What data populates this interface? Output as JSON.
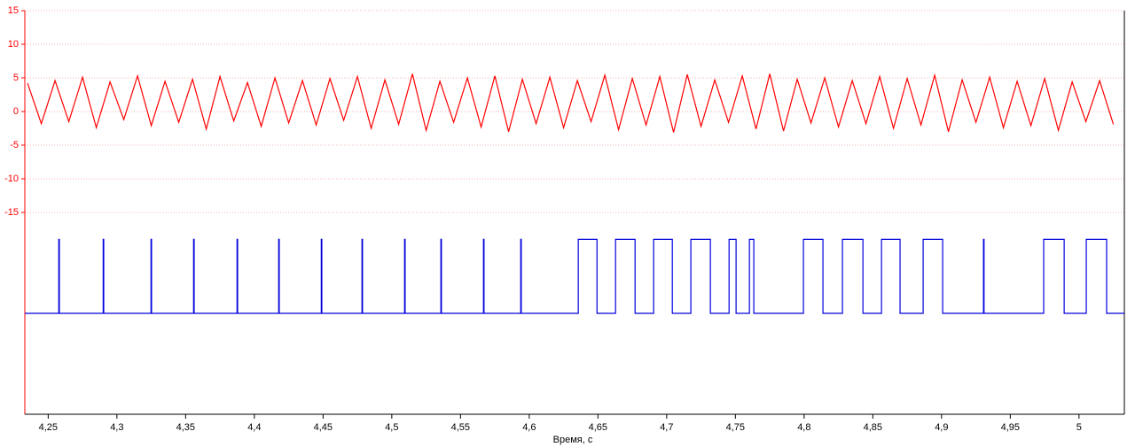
{
  "chart_data": {
    "type": "line",
    "x_label": "Время, с",
    "xlim": [
      4.233,
      5.033
    ],
    "xticks": [
      {
        "value": 4.25,
        "label": "4,25"
      },
      {
        "value": 4.3,
        "label": "4,3"
      },
      {
        "value": 4.35,
        "label": "4,35"
      },
      {
        "value": 4.4,
        "label": "4,4"
      },
      {
        "value": 4.45,
        "label": "4,45"
      },
      {
        "value": 4.5,
        "label": "4,5"
      },
      {
        "value": 4.55,
        "label": "4,55"
      },
      {
        "value": 4.6,
        "label": "4,6"
      },
      {
        "value": 4.65,
        "label": "4,65"
      },
      {
        "value": 4.7,
        "label": "4,7"
      },
      {
        "value": 4.75,
        "label": "4,75"
      },
      {
        "value": 4.8,
        "label": "4,8"
      },
      {
        "value": 4.85,
        "label": "4,85"
      },
      {
        "value": 4.9,
        "label": "4,9"
      },
      {
        "value": 4.95,
        "label": "4,95"
      },
      5
    ],
    "ylim": [
      -45,
      15
    ],
    "yticks": [
      15,
      10,
      5,
      0,
      -5,
      -10,
      -15
    ],
    "grid": true,
    "y_color": "#ff0000",
    "series": [
      {
        "color": "#ff0000",
        "x": [
          4.235,
          4.245,
          4.255,
          4.265,
          4.275,
          4.285,
          4.295,
          4.305,
          4.315,
          4.325,
          4.335,
          4.345,
          4.355,
          4.365,
          4.375,
          4.385,
          4.395,
          4.405,
          4.415,
          4.425,
          4.435,
          4.445,
          4.455,
          4.465,
          4.475,
          4.485,
          4.495,
          4.505,
          4.515,
          4.525,
          4.535,
          4.545,
          4.555,
          4.565,
          4.575,
          4.585,
          4.595,
          4.605,
          4.615,
          4.625,
          4.635,
          4.645,
          4.655,
          4.665,
          4.675,
          4.685,
          4.695,
          4.705,
          4.715,
          4.725,
          4.735,
          4.745,
          4.755,
          4.765,
          4.775,
          4.785,
          4.795,
          4.805,
          4.815,
          4.825,
          4.835,
          4.845,
          4.855,
          4.865,
          4.875,
          4.885,
          4.895,
          4.905,
          4.915,
          4.925,
          4.935,
          4.945,
          4.955,
          4.965,
          4.975,
          4.985,
          4.995,
          5.005,
          5.015,
          5.025
        ],
        "values": [
          4.2,
          -1.8,
          4.6,
          -1.5,
          5.1,
          -2.4,
          4.4,
          -1.2,
          5.3,
          -2.1,
          4.5,
          -1.6,
          4.8,
          -2.6,
          5.2,
          -1.4,
          4.3,
          -2.2,
          5.0,
          -1.7,
          4.6,
          -2.0,
          4.9,
          -1.3,
          5.2,
          -2.5,
          4.7,
          -1.9,
          5.6,
          -2.8,
          4.5,
          -1.6,
          5.0,
          -2.3,
          5.3,
          -3.0,
          4.8,
          -1.8,
          5.1,
          -2.4,
          4.6,
          -1.5,
          5.4,
          -2.7,
          4.9,
          -2.0,
          5.2,
          -3.1,
          5.5,
          -2.2,
          4.7,
          -1.6,
          5.3,
          -2.6,
          5.6,
          -2.9,
          4.8,
          -1.7,
          5.0,
          -2.3,
          4.6,
          -1.8,
          5.2,
          -2.5,
          4.9,
          -2.0,
          5.4,
          -3.0,
          4.7,
          -1.6,
          5.1,
          -2.4,
          4.5,
          -2.1,
          4.9,
          -2.8,
          4.4,
          -1.5,
          4.6,
          -1.9
        ]
      },
      {
        "color": "#0000dd",
        "x": [
          4.233,
          4.2577,
          4.2577,
          4.2581,
          4.2581,
          4.29,
          4.29,
          4.2904,
          4.2904,
          4.3248,
          4.3248,
          4.3252,
          4.3252,
          4.3558,
          4.3558,
          4.3562,
          4.3562,
          4.3874,
          4.3874,
          4.3878,
          4.3878,
          4.4177,
          4.4177,
          4.4181,
          4.4181,
          4.4487,
          4.4487,
          4.4491,
          4.4491,
          4.4783,
          4.4783,
          4.4787,
          4.4787,
          4.5093,
          4.5093,
          4.5097,
          4.5097,
          4.5357,
          4.5357,
          4.5361,
          4.5361,
          4.5667,
          4.5667,
          4.5671,
          4.5671,
          4.5938,
          4.5938,
          4.5942,
          4.5942,
          4.6357,
          4.6357,
          4.6493,
          4.6493,
          4.6628,
          4.6628,
          4.677,
          4.677,
          4.6905,
          4.6905,
          4.7041,
          4.7041,
          4.7176,
          4.7176,
          4.7318,
          4.7318,
          4.7454,
          4.7454,
          4.7505,
          4.7505,
          4.7602,
          4.7602,
          4.7634,
          4.7634,
          4.7995,
          4.7995,
          4.8137,
          4.8137,
          4.8279,
          4.8279,
          4.8428,
          4.8428,
          4.8563,
          4.8563,
          4.8698,
          4.8698,
          4.8866,
          4.8866,
          4.9008,
          4.9008,
          4.9305,
          4.9305,
          4.9309,
          4.9309,
          4.9743,
          4.9743,
          4.9892,
          4.9892,
          5.0053,
          5.0053,
          5.0201,
          5.0201,
          5.033
        ],
        "values": [
          -30,
          -30,
          -19,
          -19,
          -30,
          -30,
          -19,
          -19,
          -30,
          -30,
          -19,
          -19,
          -30,
          -30,
          -19,
          -19,
          -30,
          -30,
          -19,
          -19,
          -30,
          -30,
          -19,
          -19,
          -30,
          -30,
          -19,
          -19,
          -30,
          -30,
          -19,
          -19,
          -30,
          -30,
          -19,
          -19,
          -30,
          -30,
          -19,
          -19,
          -30,
          -30,
          -19,
          -19,
          -30,
          -30,
          -19,
          -19,
          -30,
          -30,
          -19,
          -19,
          -30,
          -30,
          -19,
          -19,
          -30,
          -30,
          -19,
          -19,
          -30,
          -30,
          -19,
          -19,
          -30,
          -30,
          -19,
          -19,
          -30,
          -30,
          -19,
          -19,
          -30,
          -30,
          -19,
          -19,
          -30,
          -30,
          -19,
          -19,
          -30,
          -30,
          -19,
          -19,
          -30,
          -30,
          -19,
          -19,
          -30,
          -30,
          -19,
          -19,
          -30,
          -30,
          -19,
          -19,
          -30,
          -30,
          -19,
          -19,
          -30,
          -30
        ]
      }
    ]
  }
}
